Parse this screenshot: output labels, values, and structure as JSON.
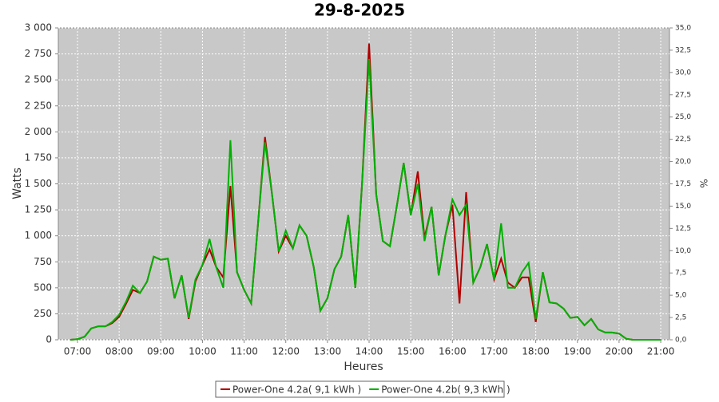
{
  "chart_data": {
    "type": "line",
    "title": "29-8-2025",
    "x_label": "Heures",
    "y_label": "Watts",
    "y2_label": "%",
    "x": [
      6.83,
      7,
      7.17,
      7.33,
      7.5,
      7.67,
      7.83,
      8,
      8.17,
      8.33,
      8.5,
      8.67,
      8.83,
      9,
      9.17,
      9.33,
      9.5,
      9.67,
      9.83,
      10,
      10.17,
      10.33,
      10.5,
      10.67,
      10.83,
      11,
      11.17,
      11.33,
      11.5,
      11.67,
      11.83,
      12,
      12.17,
      12.33,
      12.5,
      12.67,
      12.83,
      13,
      13.17,
      13.33,
      13.5,
      13.67,
      13.83,
      14,
      14.17,
      14.33,
      14.5,
      14.67,
      14.83,
      15,
      15.17,
      15.33,
      15.5,
      15.67,
      15.83,
      16,
      16.17,
      16.33,
      16.5,
      16.67,
      16.83,
      17,
      17.17,
      17.33,
      17.5,
      17.67,
      17.83,
      18,
      18.17,
      18.33,
      18.5,
      18.67,
      18.83,
      19,
      19.17,
      19.33,
      19.5,
      19.67,
      19.83,
      20,
      20.17,
      20.33,
      20.5,
      20.67,
      20.83,
      21
    ],
    "series": [
      {
        "name": "Power-One 4.2a( 9,1 kWh )",
        "color": "#b00000",
        "values": [
          0,
          5,
          30,
          110,
          130,
          130,
          160,
          220,
          350,
          480,
          450,
          560,
          800,
          770,
          780,
          400,
          620,
          200,
          560,
          720,
          870,
          700,
          600,
          1480,
          650,
          480,
          350,
          1100,
          1950,
          1400,
          850,
          1000,
          880,
          1100,
          1000,
          700,
          280,
          400,
          680,
          800,
          1200,
          500,
          1500,
          2850,
          1400,
          950,
          900,
          1300,
          1700,
          1200,
          1620,
          980,
          1280,
          620,
          1000,
          1300,
          350,
          1420,
          550,
          700,
          920,
          580,
          780,
          550,
          500,
          600,
          600,
          170,
          650,
          360,
          350,
          300,
          210,
          220,
          140,
          200,
          100,
          70,
          70,
          60,
          10,
          0,
          0,
          0,
          0,
          0
        ]
      },
      {
        "name": "Power-One 4.2b( 9,3 kWh )",
        "color": "#00b000",
        "values": [
          0,
          5,
          30,
          110,
          130,
          130,
          170,
          240,
          370,
          520,
          450,
          560,
          800,
          770,
          780,
          400,
          620,
          210,
          580,
          720,
          970,
          700,
          500,
          1920,
          650,
          480,
          350,
          1100,
          1900,
          1400,
          850,
          1050,
          880,
          1100,
          1000,
          700,
          280,
          400,
          680,
          800,
          1200,
          500,
          1500,
          2700,
          1400,
          950,
          900,
          1300,
          1700,
          1200,
          1500,
          950,
          1280,
          620,
          1000,
          1350,
          1200,
          1300,
          550,
          700,
          920,
          580,
          1120,
          500,
          500,
          650,
          740,
          200,
          650,
          360,
          350,
          300,
          210,
          220,
          140,
          200,
          100,
          70,
          70,
          60,
          10,
          0,
          0,
          0,
          0,
          0
        ]
      }
    ],
    "xlim": [
      6.54,
      21.21
    ],
    "xticks": [
      {
        "value": 7,
        "label": "07:00"
      },
      {
        "value": 8,
        "label": "08:00"
      },
      {
        "value": 9,
        "label": "09:00"
      },
      {
        "value": 10,
        "label": "10:00"
      },
      {
        "value": 11,
        "label": "11:00"
      },
      {
        "value": 12,
        "label": "12:00"
      },
      {
        "value": 13,
        "label": "13:00"
      },
      {
        "value": 14,
        "label": "14:00"
      },
      {
        "value": 15,
        "label": "15:00"
      },
      {
        "value": 16,
        "label": "16:00"
      },
      {
        "value": 17,
        "label": "17:00"
      },
      {
        "value": 18,
        "label": "18:00"
      },
      {
        "value": 19,
        "label": "19:00"
      },
      {
        "value": 20,
        "label": "20:00"
      },
      {
        "value": 21,
        "label": "21:00"
      }
    ],
    "ylim": [
      0,
      3000
    ],
    "yticks": [
      0,
      250,
      500,
      750,
      {
        "value": 1000,
        "label": "1 000"
      },
      {
        "value": 1250,
        "label": "1 250"
      },
      {
        "value": 1500,
        "label": "1 500"
      },
      {
        "value": 1750,
        "label": "1 750"
      },
      {
        "value": 2000,
        "label": "2 000"
      },
      {
        "value": 2250,
        "label": "2 250"
      },
      {
        "value": 2500,
        "label": "2 500"
      },
      {
        "value": 2750,
        "label": "2 750"
      },
      {
        "value": 3000,
        "label": "3 000"
      }
    ],
    "y2lim": [
      0,
      35
    ],
    "y2ticks": [
      {
        "value": 0,
        "label": "0,0"
      },
      {
        "value": 2.5,
        "label": "2,5"
      },
      {
        "value": 5,
        "label": "5,0"
      },
      {
        "value": 7.5,
        "label": "7,5"
      },
      {
        "value": 10,
        "label": "10,0"
      },
      {
        "value": 12.5,
        "label": "12,5"
      },
      {
        "value": 15,
        "label": "15,0"
      },
      {
        "value": 17.5,
        "label": "17,5"
      },
      {
        "value": 20,
        "label": "20,0"
      },
      {
        "value": 22.5,
        "label": "22,5"
      },
      {
        "value": 25,
        "label": "25,0"
      },
      {
        "value": 27.5,
        "label": "27,5"
      },
      {
        "value": 30,
        "label": "30,0"
      },
      {
        "value": 32.5,
        "label": "32,5"
      },
      {
        "value": 35,
        "label": "35,0"
      }
    ],
    "grid": true,
    "legend": "bottom"
  }
}
